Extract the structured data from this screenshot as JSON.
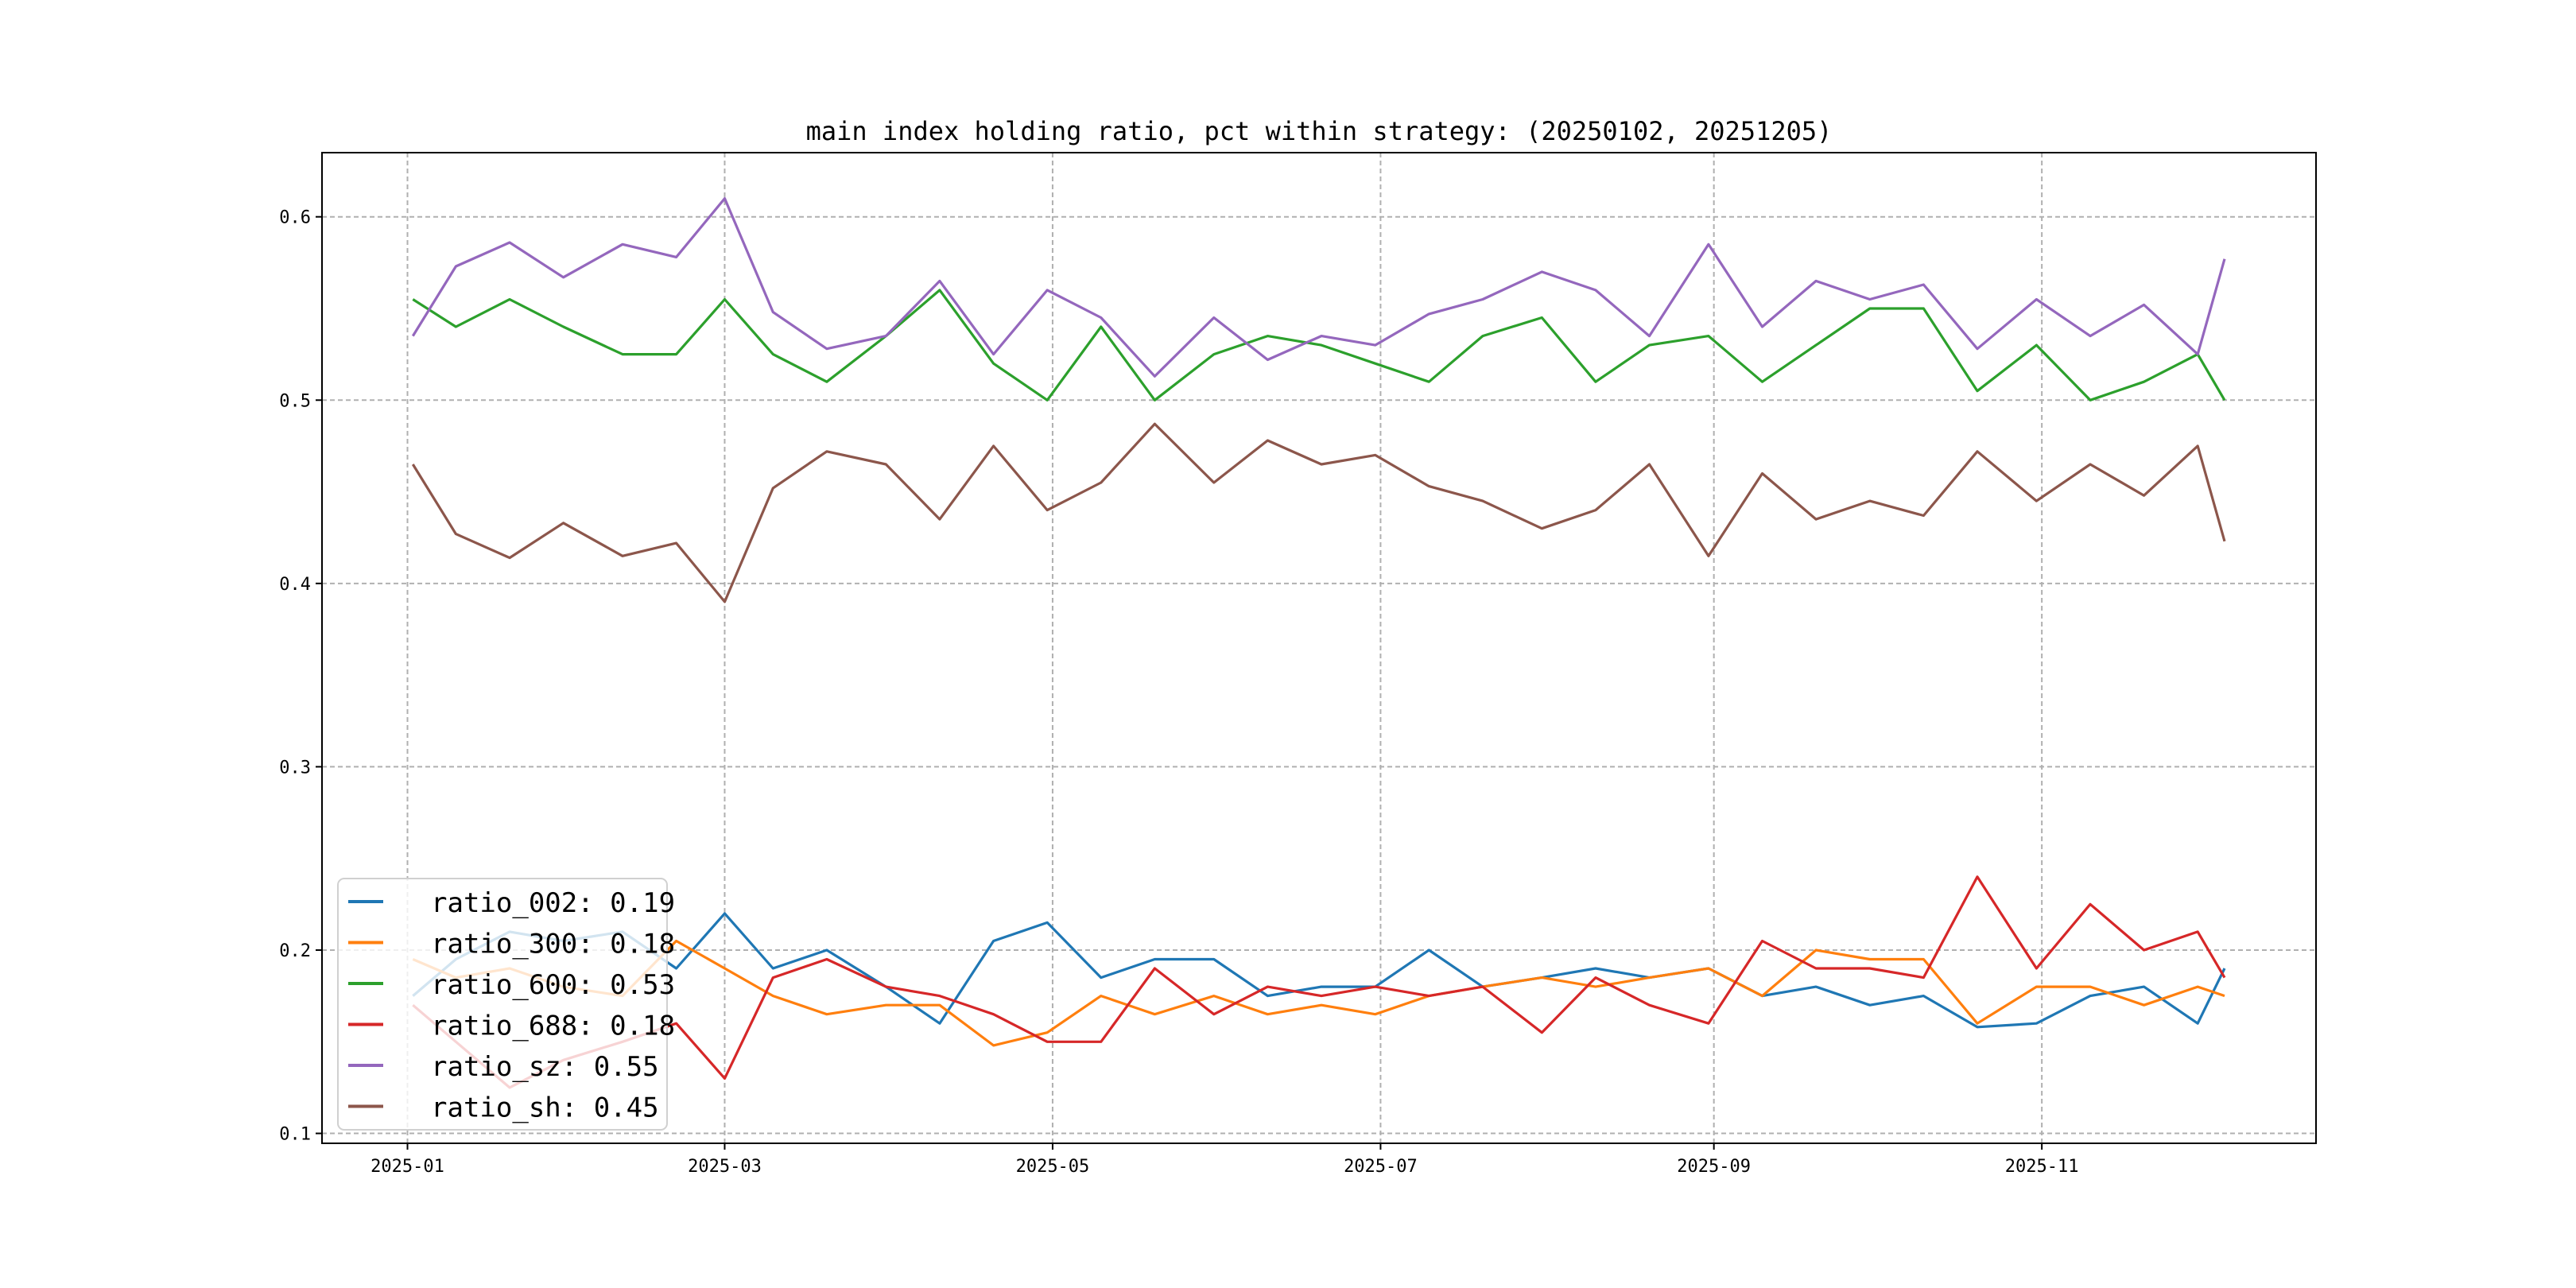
{
  "chart_data": {
    "type": "line",
    "title": "main index holding ratio, pct within strategy: (20250102, 20251205)",
    "xlabel": "",
    "ylabel": "",
    "ylim": [
      0.0946,
      0.635
    ],
    "xlim_days_from_2025_01_01": [
      -15.9,
      355
    ],
    "grid": true,
    "legend_placement": "lower-left",
    "yticks": [
      0.1,
      0.2,
      0.3,
      0.4,
      0.5,
      0.6
    ],
    "ytick_labels": [
      "0.1",
      "0.2",
      "0.3",
      "0.4",
      "0.5",
      "0.6"
    ],
    "xticks_days": [
      0,
      59,
      120,
      181,
      243,
      304
    ],
    "xtick_labels": [
      "2025-01",
      "2025-03",
      "2025-05",
      "2025-07",
      "2025-09",
      "2025-11"
    ],
    "x": [
      "2025-01-02",
      "2025-01-10",
      "2025-01-20",
      "2025-01-30",
      "2025-02-10",
      "2025-02-20",
      "2025-03-01",
      "2025-03-10",
      "2025-03-20",
      "2025-03-31",
      "2025-04-10",
      "2025-04-20",
      "2025-04-30",
      "2025-05-10",
      "2025-05-20",
      "2025-05-31",
      "2025-06-10",
      "2025-06-20",
      "2025-06-30",
      "2025-07-10",
      "2025-07-20",
      "2025-07-31",
      "2025-08-10",
      "2025-08-20",
      "2025-08-31",
      "2025-09-10",
      "2025-09-20",
      "2025-09-30",
      "2025-10-10",
      "2025-10-20",
      "2025-10-31",
      "2025-11-10",
      "2025-11-20",
      "2025-11-30",
      "2025-12-05"
    ],
    "series": [
      {
        "name": "ratio_002",
        "legend": "ratio_002: 0.19",
        "color": "#1f77b4",
        "values": [
          0.175,
          0.195,
          0.21,
          0.205,
          0.21,
          0.19,
          0.22,
          0.19,
          0.2,
          0.18,
          0.16,
          0.205,
          0.215,
          0.185,
          0.195,
          0.195,
          0.175,
          0.18,
          0.18,
          0.2,
          0.18,
          0.185,
          0.19,
          0.185,
          0.19,
          0.175,
          0.18,
          0.17,
          0.175,
          0.158,
          0.16,
          0.175,
          0.18,
          0.16,
          0.19
        ]
      },
      {
        "name": "ratio_300",
        "legend": "ratio_300: 0.18",
        "color": "#ff7f0e",
        "values": [
          0.195,
          0.185,
          0.19,
          0.18,
          0.175,
          0.205,
          0.19,
          0.175,
          0.165,
          0.17,
          0.17,
          0.148,
          0.155,
          0.175,
          0.165,
          0.175,
          0.165,
          0.17,
          0.165,
          0.175,
          0.18,
          0.185,
          0.18,
          0.185,
          0.19,
          0.175,
          0.2,
          0.195,
          0.195,
          0.16,
          0.18,
          0.18,
          0.17,
          0.18,
          0.175
        ]
      },
      {
        "name": "ratio_600",
        "legend": "ratio_600: 0.53",
        "color": "#2ca02c",
        "values": [
          0.555,
          0.54,
          0.555,
          0.54,
          0.525,
          0.525,
          0.555,
          0.525,
          0.51,
          0.535,
          0.56,
          0.52,
          0.5,
          0.54,
          0.5,
          0.525,
          0.535,
          0.53,
          0.52,
          0.51,
          0.535,
          0.545,
          0.51,
          0.53,
          0.535,
          0.51,
          0.53,
          0.55,
          0.55,
          0.505,
          0.53,
          0.5,
          0.51,
          0.525,
          0.5
        ]
      },
      {
        "name": "ratio_688",
        "legend": "ratio_688: 0.18",
        "color": "#d62728",
        "values": [
          0.17,
          0.15,
          0.125,
          0.14,
          0.15,
          0.16,
          0.13,
          0.185,
          0.195,
          0.18,
          0.175,
          0.165,
          0.15,
          0.15,
          0.19,
          0.165,
          0.18,
          0.175,
          0.18,
          0.175,
          0.18,
          0.155,
          0.185,
          0.17,
          0.16,
          0.205,
          0.19,
          0.19,
          0.185,
          0.24,
          0.19,
          0.225,
          0.2,
          0.21,
          0.185
        ]
      },
      {
        "name": "ratio_sz",
        "legend": "ratio_sz: 0.55",
        "color": "#9467bd",
        "values": [
          0.535,
          0.573,
          0.586,
          0.567,
          0.585,
          0.578,
          0.61,
          0.548,
          0.528,
          0.535,
          0.565,
          0.525,
          0.56,
          0.545,
          0.513,
          0.545,
          0.522,
          0.535,
          0.53,
          0.547,
          0.555,
          0.57,
          0.56,
          0.535,
          0.585,
          0.54,
          0.565,
          0.555,
          0.563,
          0.528,
          0.555,
          0.535,
          0.552,
          0.525,
          0.577
        ]
      },
      {
        "name": "ratio_sh",
        "legend": "ratio_sh: 0.45",
        "color": "#8c564b",
        "values": [
          0.465,
          0.427,
          0.414,
          0.433,
          0.415,
          0.422,
          0.39,
          0.452,
          0.472,
          0.465,
          0.435,
          0.475,
          0.44,
          0.455,
          0.487,
          0.455,
          0.478,
          0.465,
          0.47,
          0.453,
          0.445,
          0.43,
          0.44,
          0.465,
          0.415,
          0.46,
          0.435,
          0.445,
          0.437,
          0.472,
          0.445,
          0.465,
          0.448,
          0.475,
          0.423
        ]
      }
    ]
  }
}
